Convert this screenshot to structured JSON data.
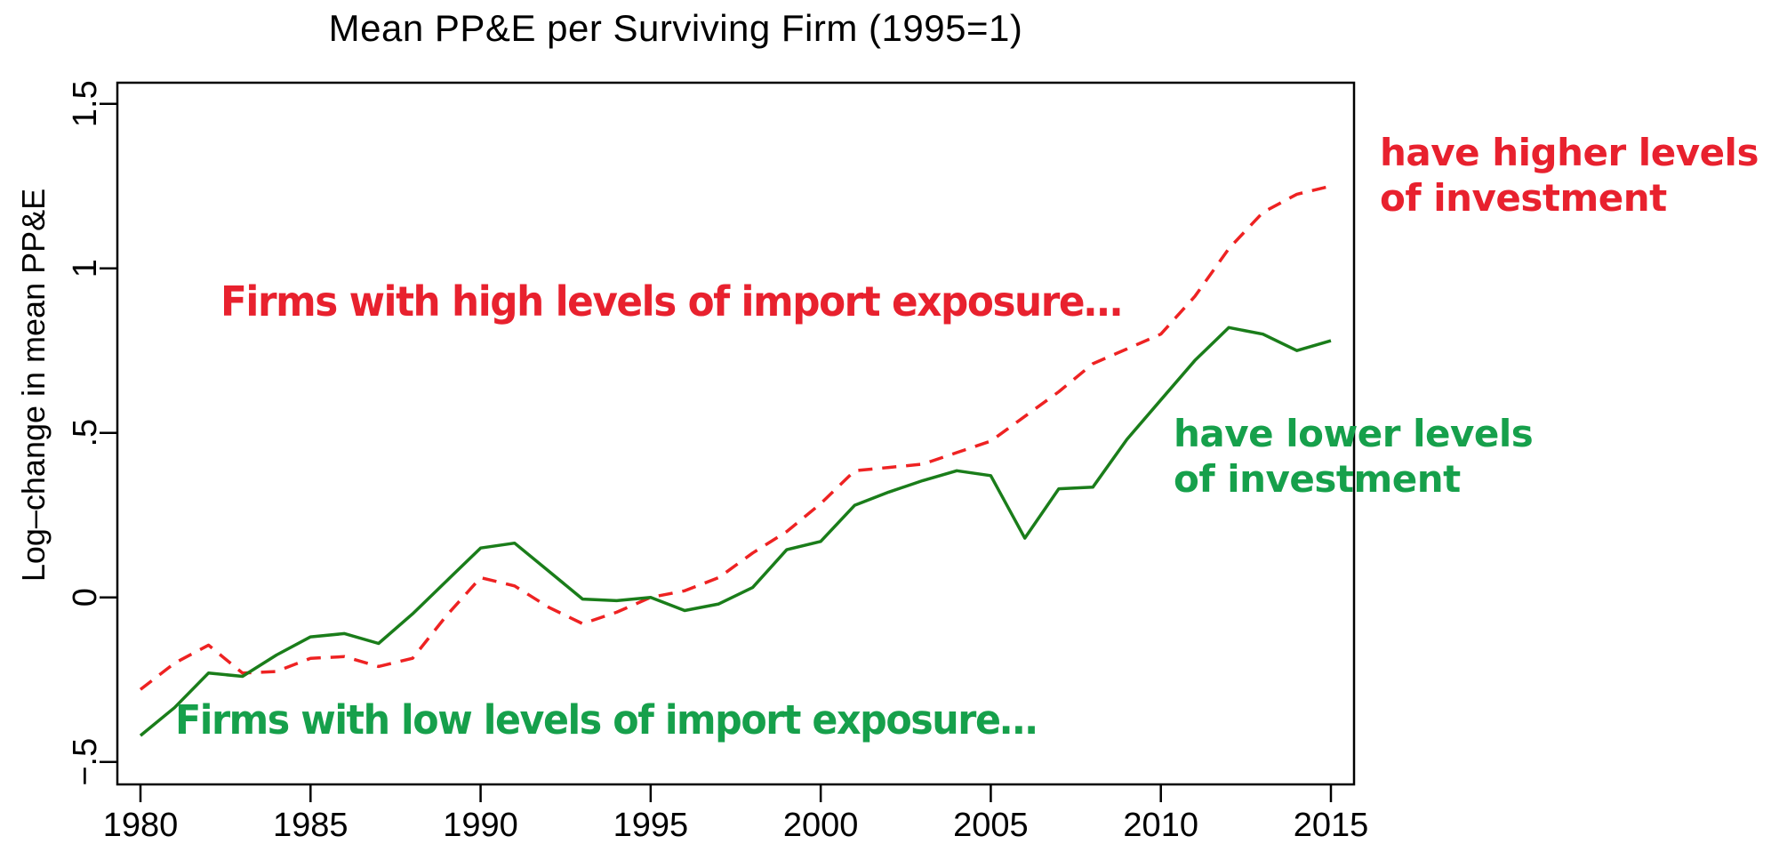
{
  "page": {
    "title": "Mean PP&E per Surviving Firm (1995=1)"
  },
  "chart_data": {
    "type": "line",
    "title": "Mean PP&E per Surviving Firm (1995=1)",
    "xlabel": "",
    "ylabel": "Log–change in mean PP&E",
    "xlim": [
      1980,
      2015
    ],
    "ylim": [
      -0.55,
      1.55
    ],
    "grid": false,
    "legend_position": "none",
    "x": [
      1980,
      1981,
      1982,
      1983,
      1984,
      1985,
      1986,
      1987,
      1988,
      1989,
      1990,
      1991,
      1992,
      1993,
      1994,
      1995,
      1996,
      1997,
      1998,
      1999,
      2000,
      2001,
      2002,
      2003,
      2004,
      2005,
      2006,
      2007,
      2008,
      2009,
      2010,
      2011,
      2012,
      2013,
      2014,
      2015
    ],
    "x_ticks": [
      1980,
      1985,
      1990,
      1995,
      2000,
      2005,
      2010,
      2015
    ],
    "y_ticks": [
      {
        "value": -0.5,
        "label": "−.5"
      },
      {
        "value": 0,
        "label": "0"
      },
      {
        "value": 0.5,
        "label": ".5"
      },
      {
        "value": 1,
        "label": "1"
      },
      {
        "value": 1.5,
        "label": "1.5"
      }
    ],
    "series": [
      {
        "name": "Firms with high levels of import exposure",
        "color": "#ee2222",
        "style": "dashed",
        "values": [
          -0.28,
          -0.2,
          -0.145,
          -0.23,
          -0.225,
          -0.185,
          -0.18,
          -0.21,
          -0.185,
          -0.055,
          0.06,
          0.035,
          -0.03,
          -0.08,
          -0.045,
          0.0,
          0.02,
          0.06,
          0.135,
          0.2,
          0.285,
          0.385,
          0.395,
          0.405,
          0.44,
          0.475,
          0.55,
          0.625,
          0.71,
          0.755,
          0.8,
          0.915,
          1.06,
          1.17,
          1.225,
          1.25
        ]
      },
      {
        "name": "Firms with low levels of import exposure",
        "color": "#1a7d1a",
        "style": "solid",
        "values": [
          -0.42,
          -0.335,
          -0.23,
          -0.24,
          -0.175,
          -0.12,
          -0.11,
          -0.14,
          -0.05,
          0.05,
          0.15,
          0.165,
          0.08,
          -0.005,
          -0.01,
          0.0,
          -0.04,
          -0.02,
          0.03,
          0.145,
          0.17,
          0.28,
          0.32,
          0.355,
          0.385,
          0.37,
          0.18,
          0.33,
          0.335,
          0.48,
          0.6,
          0.72,
          0.82,
          0.8,
          0.75,
          0.78
        ]
      }
    ],
    "annotations": [
      {
        "id": "red_main",
        "text": "Firms with high levels of import exposure…",
        "color": "#e8212e"
      },
      {
        "id": "green_main",
        "text": "Firms with low levels of import exposure…",
        "color": "#16a04b"
      },
      {
        "id": "red_side",
        "text": "have higher levels\nof investment",
        "color": "#e8212e"
      },
      {
        "id": "green_side",
        "text": "have lower levels\nof investment",
        "color": "#16a04b"
      }
    ]
  },
  "annotations_text": {
    "red_main": "Firms with high levels of import exposure…",
    "green_main": "Firms with low levels of import exposure…",
    "red_side": "have higher levels\nof investment",
    "green_side": "have lower levels\nof investment"
  },
  "colors": {
    "line_red": "#ee2222",
    "line_green": "#1a7d1a",
    "ann_red": "#e8212e",
    "ann_green": "#16a04b",
    "axis": "#000000"
  }
}
